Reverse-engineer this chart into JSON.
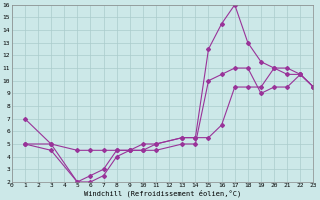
{
  "xlabel": "Windchill (Refroidissement éolien,°C)",
  "bg_color": "#cce8e8",
  "grid_color": "#aacccc",
  "line_color": "#993399",
  "line1_x": [
    1,
    3,
    5,
    6,
    7,
    8,
    9,
    10,
    11,
    13,
    14,
    15,
    16,
    17,
    18,
    19,
    20,
    21,
    22,
    23
  ],
  "line1_y": [
    7,
    5,
    2,
    2,
    2.5,
    4,
    4.5,
    4.5,
    4.5,
    5,
    5,
    10,
    10.5,
    11,
    11,
    9,
    9.5,
    9.5,
    10.5,
    9.5
  ],
  "line2_x": [
    1,
    3,
    5,
    6,
    7,
    8,
    9,
    10,
    11,
    13,
    14,
    15,
    16,
    17,
    18,
    19,
    20,
    21,
    22,
    23
  ],
  "line2_y": [
    5,
    4.5,
    2,
    2.5,
    3,
    4.5,
    4.5,
    5,
    5,
    5.5,
    5.5,
    12.5,
    14.5,
    16,
    13,
    11.5,
    11,
    10.5,
    10.5,
    9.5
  ],
  "line3_x": [
    1,
    3,
    5,
    6,
    7,
    8,
    9,
    10,
    11,
    13,
    14,
    15,
    16,
    17,
    18,
    19,
    20,
    21,
    22,
    23
  ],
  "line3_y": [
    5,
    5,
    4.5,
    4.5,
    4.5,
    4.5,
    4.5,
    4.5,
    5,
    5.5,
    5.5,
    5.5,
    6.5,
    9.5,
    9.5,
    9.5,
    11,
    11,
    10.5,
    9.5
  ],
  "xlim": [
    0,
    23
  ],
  "ylim": [
    2,
    16
  ],
  "xticks": [
    0,
    1,
    2,
    3,
    4,
    5,
    6,
    7,
    8,
    9,
    10,
    11,
    12,
    13,
    14,
    15,
    16,
    17,
    18,
    19,
    20,
    21,
    22,
    23
  ],
  "yticks": [
    2,
    3,
    4,
    5,
    6,
    7,
    8,
    9,
    10,
    11,
    12,
    13,
    14,
    15,
    16
  ]
}
